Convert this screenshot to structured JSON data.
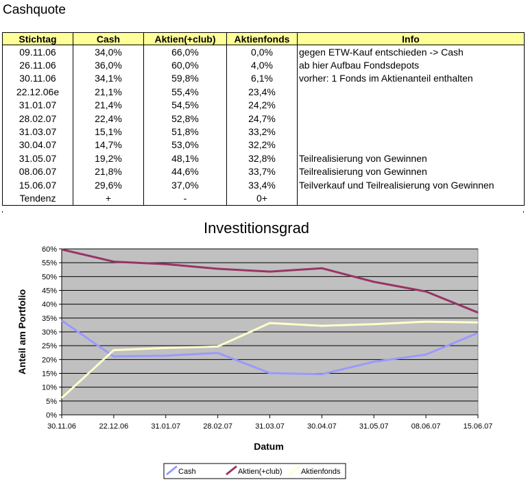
{
  "title": "Cashquote",
  "table": {
    "headers": [
      "Stichtag",
      "Cash",
      "Aktien(+club)",
      "Aktienfonds",
      "Info"
    ],
    "rows": [
      [
        "09.11.06",
        "34,0%",
        "66,0%",
        "0,0%",
        "gegen ETW-Kauf entschieden -> Cash"
      ],
      [
        "26.11.06",
        "36,0%",
        "60,0%",
        "4,0%",
        "ab hier Aufbau Fondsdepots"
      ],
      [
        "30.11.06",
        "34,1%",
        "59,8%",
        "6,1%",
        "vorher: 1 Fonds im Aktienanteil enthalten"
      ],
      [
        "22.12.06e",
        "21,1%",
        "55,4%",
        "23,4%",
        ""
      ],
      [
        "31.01.07",
        "21,4%",
        "54,5%",
        "24,2%",
        ""
      ],
      [
        "28.02.07",
        "22,4%",
        "52,8%",
        "24,7%",
        ""
      ],
      [
        "31.03.07",
        "15,1%",
        "51,8%",
        "33,2%",
        ""
      ],
      [
        "30.04.07",
        "14,7%",
        "53,0%",
        "32,2%",
        ""
      ],
      [
        "31.05.07",
        "19,2%",
        "48,1%",
        "32,8%",
        "Teilrealisierung von Gewinnen"
      ],
      [
        "08.06.07",
        "21,8%",
        "44,6%",
        "33,7%",
        "Teilrealisierung von Gewinnen"
      ],
      [
        "15.06.07",
        "29,6%",
        "37,0%",
        "33,4%",
        "Teilverkauf und Teilrealisierung von Gewinnen"
      ],
      [
        "Tendenz",
        "+",
        "-",
        "0+",
        ""
      ]
    ]
  },
  "chart_data": {
    "type": "line",
    "title": "Investitionsgrad",
    "xlabel": "Datum",
    "ylabel": "Anteil am Portfolio",
    "categories": [
      "30.11.06",
      "22.12.06",
      "31.01.07",
      "28.02.07",
      "31.03.07",
      "30.04.07",
      "31.05.07",
      "08.06.07",
      "15.06.07"
    ],
    "ylim": [
      0,
      60
    ],
    "yticks": [
      "0%",
      "5%",
      "10%",
      "15%",
      "20%",
      "25%",
      "30%",
      "35%",
      "40%",
      "45%",
      "50%",
      "55%",
      "60%"
    ],
    "grid": true,
    "legend": "bottom",
    "series": [
      {
        "name": "Cash",
        "color": "#9999ff",
        "values": [
          34.1,
          21.1,
          21.4,
          22.4,
          15.1,
          14.7,
          19.2,
          21.8,
          29.6
        ]
      },
      {
        "name": "Aktien(+club)",
        "color": "#993366",
        "values": [
          59.8,
          55.4,
          54.5,
          52.8,
          51.8,
          53.0,
          48.1,
          44.6,
          37.0
        ]
      },
      {
        "name": "Aktienfonds",
        "color": "#ffffcc",
        "values": [
          6.1,
          23.4,
          24.2,
          24.7,
          33.2,
          32.2,
          32.8,
          33.7,
          33.4
        ]
      }
    ],
    "plot_background": "#c0c0c0"
  }
}
